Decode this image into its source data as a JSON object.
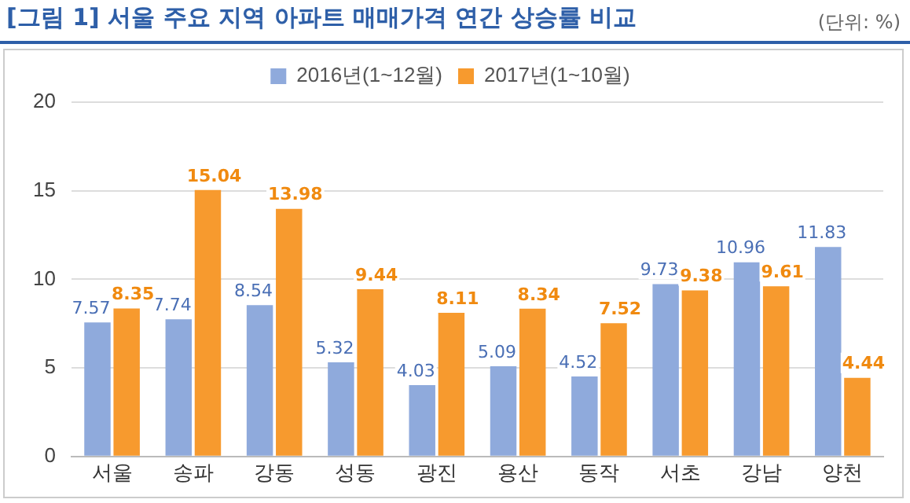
{
  "chart_data": {
    "type": "bar",
    "title": "[그림 1] 서울 주요 지역 아파트 매매가격 연간 상승률 비교",
    "annotations": [
      "(단위: %)"
    ],
    "categories": [
      "서울",
      "송파",
      "강동",
      "성동",
      "광진",
      "용산",
      "동작",
      "서초",
      "강남",
      "양천"
    ],
    "series": [
      {
        "name": "2016년(1~12월)",
        "color": "#8faadc",
        "values": [
          7.57,
          7.74,
          8.54,
          5.32,
          4.03,
          5.09,
          4.52,
          9.73,
          10.96,
          11.83
        ]
      },
      {
        "name": "2017년(1~10월)",
        "color": "#f79a2e",
        "values": [
          8.35,
          15.04,
          13.98,
          9.44,
          8.11,
          8.34,
          7.52,
          9.38,
          9.61,
          4.44
        ]
      }
    ],
    "ylim": [
      0,
      20
    ],
    "yticks": [
      0,
      5,
      10,
      15,
      20
    ],
    "grid": "y",
    "legend": "top",
    "data_labels": true
  }
}
